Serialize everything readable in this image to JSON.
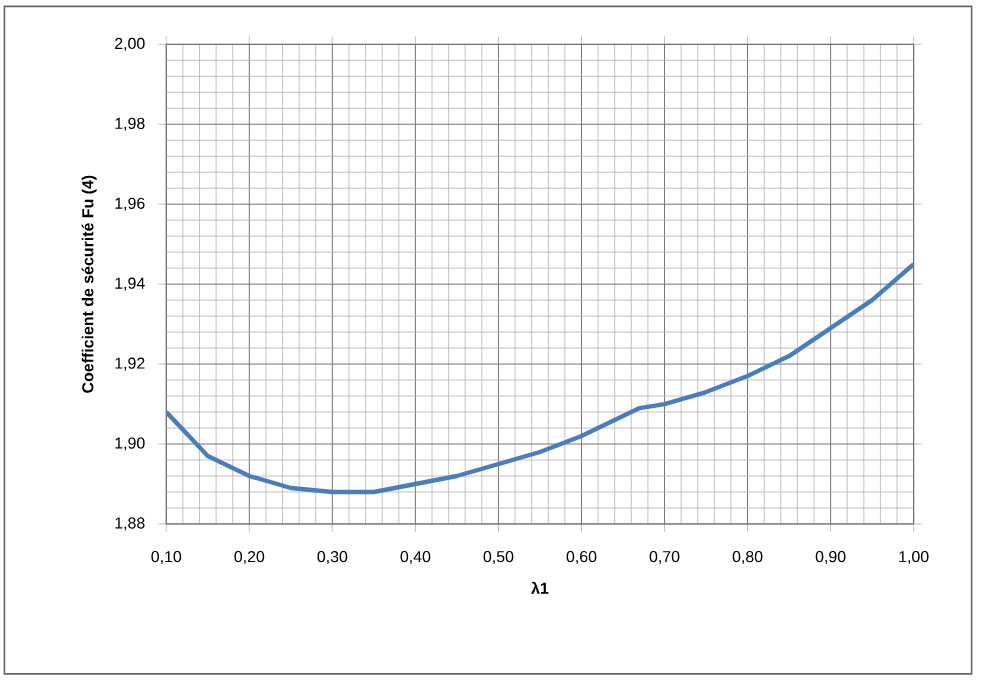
{
  "chart_data": {
    "type": "line",
    "xlabel": "λ1",
    "ylabel": "Coefficient de sécurité Fu (4)",
    "xlim": [
      0.1,
      1.0
    ],
    "ylim": [
      1.88,
      2.0
    ],
    "xticks": [
      {
        "value": 0.1,
        "label": "0,10"
      },
      {
        "value": 0.2,
        "label": "0,20"
      },
      {
        "value": 0.3,
        "label": "0,30"
      },
      {
        "value": 0.4,
        "label": "0,40"
      },
      {
        "value": 0.5,
        "label": "0,50"
      },
      {
        "value": 0.6,
        "label": "0,60"
      },
      {
        "value": 0.7,
        "label": "0,70"
      },
      {
        "value": 0.8,
        "label": "0,80"
      },
      {
        "value": 0.9,
        "label": "0,90"
      },
      {
        "value": 1.0,
        "label": "1,00"
      }
    ],
    "yticks": [
      {
        "value": 1.88,
        "label": "1,88"
      },
      {
        "value": 1.9,
        "label": "1,90"
      },
      {
        "value": 1.92,
        "label": "1,92"
      },
      {
        "value": 1.94,
        "label": "1,94"
      },
      {
        "value": 1.96,
        "label": "1,96"
      },
      {
        "value": 1.98,
        "label": "1,98"
      },
      {
        "value": 2.0,
        "label": "2,00"
      }
    ],
    "grid": true,
    "marker": "none",
    "line_style": "solid",
    "x": [
      0.1,
      0.15,
      0.2,
      0.25,
      0.3,
      0.35,
      0.4,
      0.45,
      0.5,
      0.55,
      0.6,
      0.65,
      0.67,
      0.7,
      0.75,
      0.8,
      0.85,
      0.9,
      0.95,
      1.0
    ],
    "series": [
      {
        "color": "#4a7ebb",
        "values": [
          1.908,
          1.897,
          1.892,
          1.889,
          1.888,
          1.888,
          1.89,
          1.892,
          1.895,
          1.898,
          1.902,
          1.907,
          1.909,
          1.91,
          1.913,
          1.917,
          1.922,
          1.929,
          1.936,
          1.945
        ]
      }
    ]
  }
}
